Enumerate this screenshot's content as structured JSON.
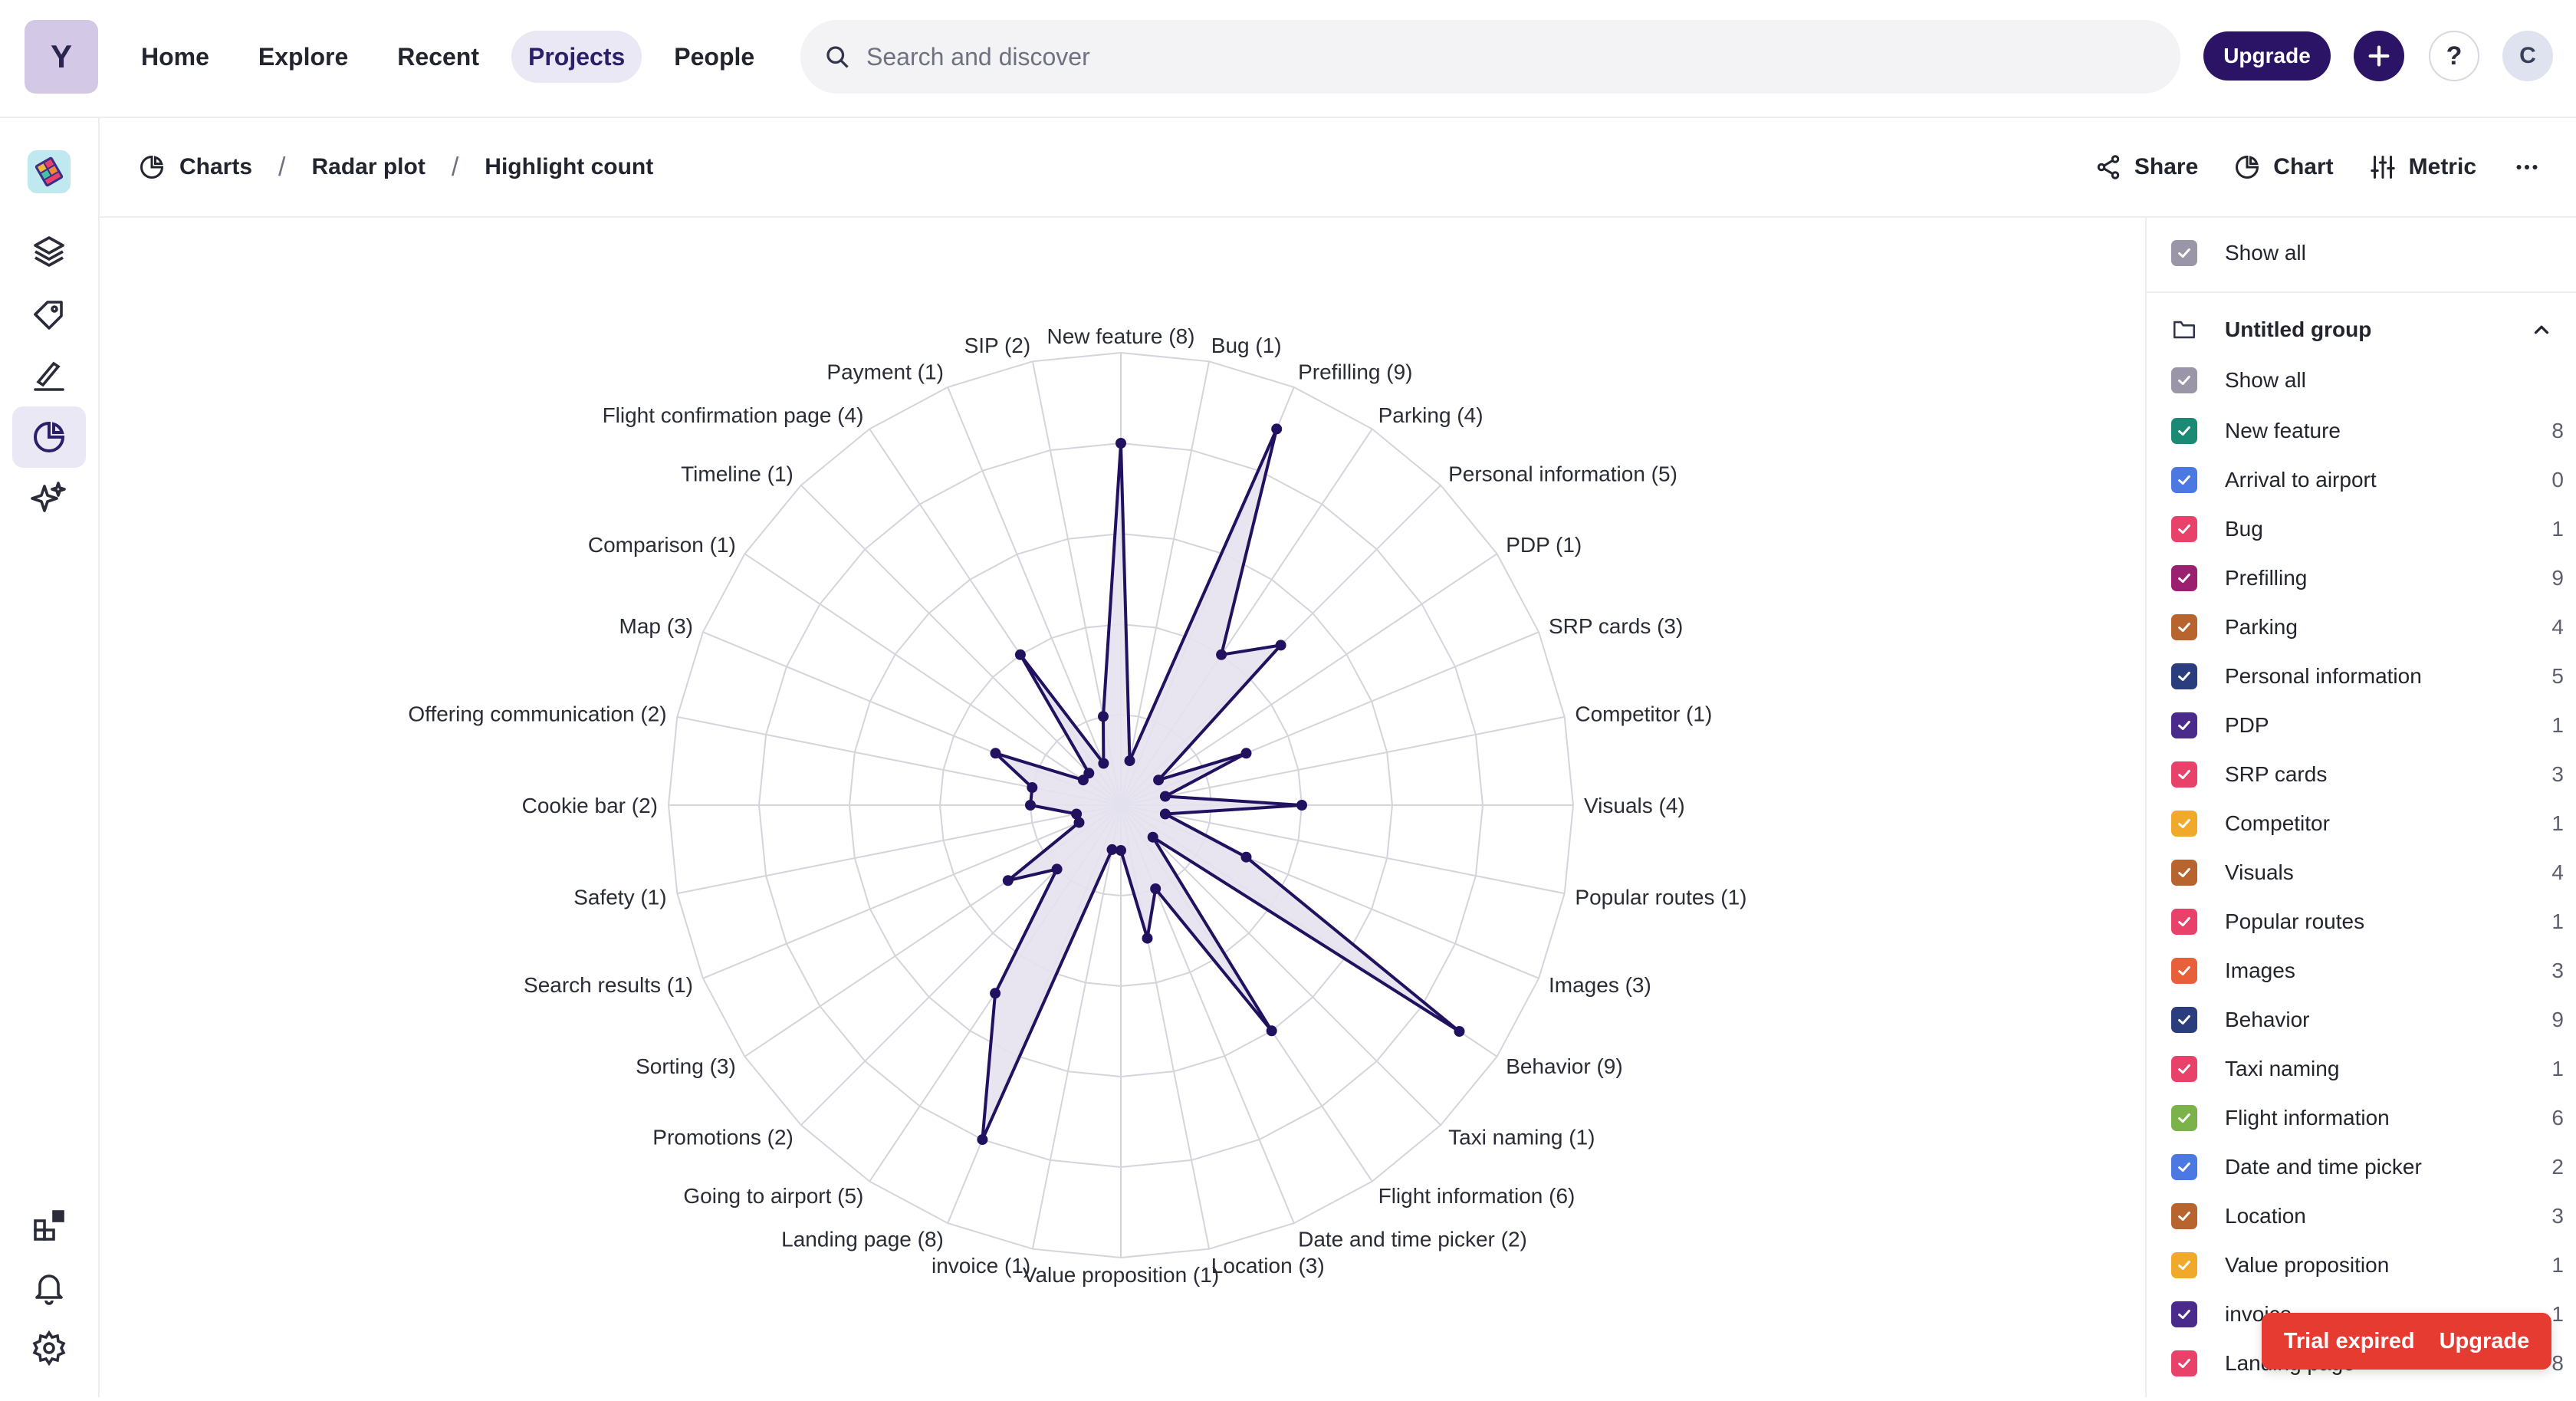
{
  "app": {
    "logo_letter": "Y"
  },
  "nav": {
    "items": [
      "Home",
      "Explore",
      "Recent",
      "Projects",
      "People"
    ],
    "active": "Projects"
  },
  "search": {
    "placeholder": "Search and discover"
  },
  "header_actions": {
    "upgrade_label": "Upgrade",
    "help_label": "?",
    "avatar_letter": "C"
  },
  "breadcrumb": {
    "items": [
      "Charts",
      "Radar plot",
      "Highlight count"
    ],
    "separator": "/"
  },
  "toolbar": {
    "share_label": "Share",
    "chart_label": "Chart",
    "metric_label": "Metric"
  },
  "panel": {
    "show_all_top": "Show all",
    "group_title": "Untitled group",
    "group_show_all": "Show all",
    "items": [
      {
        "label": "New feature",
        "count": "8",
        "color": "#1a8a75"
      },
      {
        "label": "Arrival to airport",
        "count": "0",
        "color": "#4b78e3"
      },
      {
        "label": "Bug",
        "count": "1",
        "color": "#e8416a"
      },
      {
        "label": "Prefilling",
        "count": "9",
        "color": "#9b2070"
      },
      {
        "label": "Parking",
        "count": "4",
        "color": "#b8642e"
      },
      {
        "label": "Personal information",
        "count": "5",
        "color": "#2a3e7e"
      },
      {
        "label": "PDP",
        "count": "1",
        "color": "#4a2a8a"
      },
      {
        "label": "SRP cards",
        "count": "3",
        "color": "#e8416a"
      },
      {
        "label": "Competitor",
        "count": "1",
        "color": "#f0a92a"
      },
      {
        "label": "Visuals",
        "count": "4",
        "color": "#b8642e"
      },
      {
        "label": "Popular routes",
        "count": "1",
        "color": "#e8416a"
      },
      {
        "label": "Images",
        "count": "3",
        "color": "#e8603a"
      },
      {
        "label": "Behavior",
        "count": "9",
        "color": "#2a3e7e"
      },
      {
        "label": "Taxi naming",
        "count": "1",
        "color": "#e8416a"
      },
      {
        "label": "Flight information",
        "count": "6",
        "color": "#7cb24a"
      },
      {
        "label": "Date and time picker",
        "count": "2",
        "color": "#4b78e3"
      },
      {
        "label": "Location",
        "count": "3",
        "color": "#b8642e"
      },
      {
        "label": "Value proposition",
        "count": "1",
        "color": "#f0a92a"
      },
      {
        "label": "invoice",
        "count": "1",
        "color": "#4a2a8a"
      },
      {
        "label": "Landing page",
        "count": "8",
        "color": "#e8416a"
      }
    ]
  },
  "toast": {
    "trial_label": "Trial expired",
    "upgrade_label": "Upgrade"
  },
  "chart_data": {
    "type": "radar",
    "title": "",
    "max": 10,
    "rings": 5,
    "categories": [
      "New feature",
      "Bug",
      "Prefilling",
      "Parking",
      "Personal information",
      "PDP",
      "SRP cards",
      "Competitor",
      "Visuals",
      "Popular routes",
      "Images",
      "Behavior",
      "Taxi naming",
      "Flight information",
      "Date and time picker",
      "Location",
      "Value proposition",
      "invoice",
      "Landing page",
      "Going to airport",
      "Promotions",
      "Sorting",
      "Search results",
      "Safety",
      "Cookie bar",
      "Offering communication",
      "Map",
      "Comparison",
      "Timeline",
      "Flight confirmation page",
      "Payment",
      "SIP"
    ],
    "values": [
      8,
      1,
      9,
      4,
      5,
      1,
      3,
      1,
      4,
      1,
      3,
      9,
      1,
      6,
      2,
      3,
      1,
      1,
      8,
      5,
      2,
      3,
      1,
      1,
      2,
      2,
      3,
      1,
      1,
      4,
      1,
      2
    ],
    "axis_labels": [
      "New feature (8)",
      "Bug (1)",
      "Prefilling (9)",
      "Parking (4)",
      "Personal information (5)",
      "PDP (1)",
      "SRP cards (3)",
      "Competitor (1)",
      "Visuals (4)",
      "Popular routes (1)",
      "Images (3)",
      "Behavior (9)",
      "Taxi naming (1)",
      "Flight information (6)",
      "Date and time picker (2)",
      "Location (3)",
      "Value proposition (1)",
      "invoice (1)",
      "Landing page (8)",
      "Going to airport (5)",
      "Promotions (2)",
      "Sorting (3)",
      "Search results (1)",
      "Safety (1)",
      "Cookie bar (2)",
      "Offering communication (2)",
      "Map (3)",
      "Comparison (1)",
      "Timeline (1)",
      "Flight confirmation page (4)",
      "Payment (1)",
      "SIP (2)"
    ],
    "series_color": "#22115e",
    "fill_color": "#e6e2f0"
  }
}
